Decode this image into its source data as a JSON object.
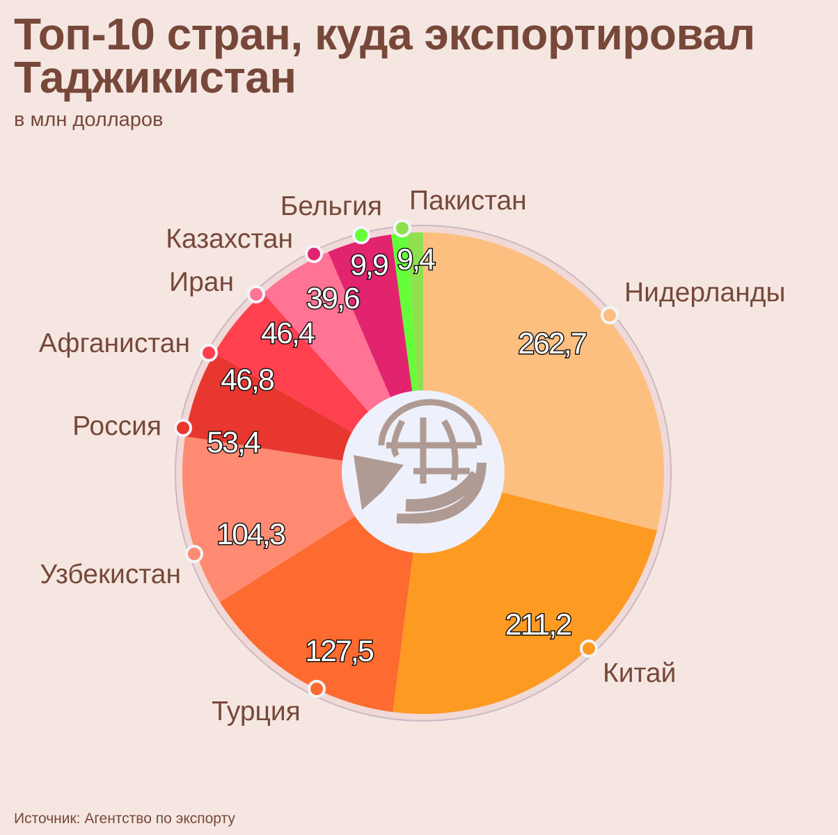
{
  "title": "Топ-10 стран, куда экспортировал Таджикистан",
  "subtitle": "в млн долларов",
  "source": "Источник: Агентство по экспорту",
  "center_icon": "globe-export-arrow-icon",
  "chart_data": {
    "type": "pie",
    "title": "Топ-10 стран, куда экспортировал Таджикистан",
    "subtitle": "в млн долларов",
    "start": "12 o'clock, clockwise",
    "donut_hole": true,
    "categories": [
      "Нидерланды",
      "Китай",
      "Турция",
      "Узбекистан",
      "Россия",
      "Афганистан",
      "Иран",
      "Казахстан",
      "Бельгия",
      "Пакистан"
    ],
    "values": [
      262.7,
      211.2,
      127.5,
      104.3,
      53.4,
      46.8,
      46.4,
      39.6,
      9.9,
      9.4
    ],
    "value_labels": [
      "262,7",
      "211,2",
      "127,5",
      "104,3",
      "53,4",
      "46,8",
      "46,4",
      "39,6",
      "9,9",
      "9,4"
    ],
    "colors": [
      "#fdbf7f",
      "#fd9a22",
      "#fd6b30",
      "#ff8a72",
      "#e8372f",
      "#fe404f",
      "#ff7394",
      "#e2246f",
      "#66fd3b",
      "#8fe04e"
    ]
  }
}
